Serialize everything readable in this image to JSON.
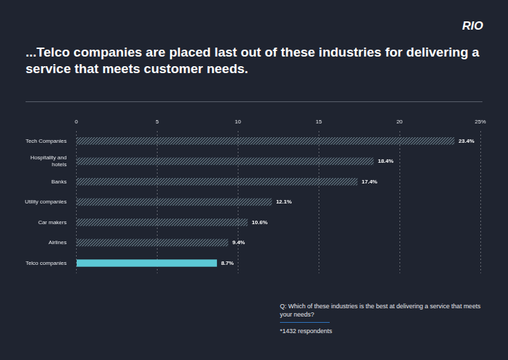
{
  "logo": "RIO",
  "chart_data": {
    "type": "bar",
    "orientation": "horizontal",
    "title": "...Telco companies are placed last out of these industries for delivering a service that meets customer needs.",
    "categories": [
      "Tech Companies",
      "Hospitality and hotels",
      "Banks",
      "Utility companies",
      "Car makers",
      "Airlines",
      "Telco companies"
    ],
    "values": [
      23.4,
      18.4,
      17.4,
      12.1,
      10.6,
      9.4,
      8.7
    ],
    "value_labels": [
      "23.4%",
      "18.4%",
      "17.4%",
      "12.1%",
      "10.6%",
      "9.4%",
      "8.7%"
    ],
    "data_labels": true,
    "color": "#6a808b",
    "colors": [
      "#6a808b",
      "#6a808b",
      "#6a808b",
      "#6a808b",
      "#6a808b",
      "#6a808b",
      "#5cc8d5"
    ],
    "xlim": [
      0,
      25
    ],
    "xticks": [
      0,
      5,
      10,
      15,
      20,
      {
        "value": 25,
        "label": "25%"
      }
    ],
    "grid": true,
    "annotations": [
      "Q: Which of these industries is the best at delivering a service that meets your needs?",
      "*1432 respondents"
    ]
  }
}
